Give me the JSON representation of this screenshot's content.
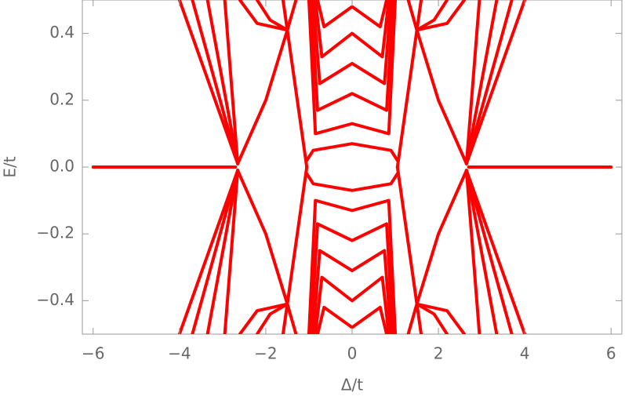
{
  "chart_data": {
    "type": "line",
    "xlabel": "Δ/t",
    "ylabel": "E/t",
    "color": "#ff0000",
    "xlim": [
      -6.25,
      6.25
    ],
    "ylim": [
      -0.5,
      0.5
    ],
    "xticks": [
      {
        "value": -6,
        "label": "−6"
      },
      {
        "value": -4,
        "label": "−4"
      },
      {
        "value": -2,
        "label": "−2"
      },
      0,
      2,
      4,
      6
    ],
    "yticks": [
      {
        "value": -0.4,
        "label": "−0.4"
      },
      {
        "value": -0.2,
        "label": "−0.2"
      },
      {
        "value": 0,
        "label": "0.0"
      },
      {
        "value": 0.2,
        "label": "0.2"
      },
      {
        "value": 0.4,
        "label": "0.4"
      }
    ],
    "series": [
      {
        "x": [
          -6,
          -2.7
        ],
        "values": [
          0,
          0
        ]
      },
      {
        "x": [
          2.7,
          6
        ],
        "values": [
          0,
          0
        ]
      },
      {
        "x": [
          2.65,
          2.95
        ],
        "values": [
          0.01,
          0.5
        ]
      },
      {
        "x": [
          2.65,
          3.35
        ],
        "values": [
          0.01,
          0.5
        ]
      },
      {
        "x": [
          2.65,
          3.7
        ],
        "values": [
          0.01,
          0.5
        ]
      },
      {
        "x": [
          2.65,
          4.0
        ],
        "values": [
          0.01,
          0.5
        ]
      },
      {
        "x": [
          1.5,
          2.0,
          2.65
        ],
        "values": [
          0.41,
          0.2,
          0.01
        ]
      },
      {
        "x": [
          1.5,
          1.9,
          2.2
        ],
        "values": [
          0.41,
          0.44,
          0.5
        ]
      },
      {
        "x": [
          1.5,
          2.2,
          2.6
        ],
        "values": [
          0.41,
          0.43,
          0.5
        ]
      },
      {
        "x": [
          1.05,
          1.6
        ],
        "values": [
          0.0,
          0.5
        ]
      },
      {
        "x": [
          1.3,
          1.5
        ],
        "values": [
          0.5,
          0.41
        ]
      },
      {
        "x": [
          -2.65,
          -2.95
        ],
        "values": [
          0.01,
          0.5
        ]
      },
      {
        "x": [
          -2.65,
          -3.35
        ],
        "values": [
          0.01,
          0.5
        ]
      },
      {
        "x": [
          -2.65,
          -3.7
        ],
        "values": [
          0.01,
          0.5
        ]
      },
      {
        "x": [
          -2.65,
          -4.0
        ],
        "values": [
          0.01,
          0.5
        ]
      },
      {
        "x": [
          -1.5,
          -2.0,
          -2.65
        ],
        "values": [
          0.41,
          0.2,
          0.01
        ]
      },
      {
        "x": [
          -1.5,
          -1.9,
          -2.2
        ],
        "values": [
          0.41,
          0.44,
          0.5
        ]
      },
      {
        "x": [
          -1.5,
          -2.2,
          -2.6
        ],
        "values": [
          0.41,
          0.43,
          0.5
        ]
      },
      {
        "x": [
          -1.05,
          -1.6
        ],
        "values": [
          0.0,
          0.5
        ]
      },
      {
        "x": [
          -1.3,
          -1.5
        ],
        "values": [
          0.5,
          0.41
        ]
      },
      {
        "x": [
          2.65,
          2.95
        ],
        "values": [
          -0.01,
          -0.5
        ]
      },
      {
        "x": [
          2.65,
          3.35
        ],
        "values": [
          -0.01,
          -0.5
        ]
      },
      {
        "x": [
          2.65,
          3.7
        ],
        "values": [
          -0.01,
          -0.5
        ]
      },
      {
        "x": [
          2.65,
          4.0
        ],
        "values": [
          -0.01,
          -0.5
        ]
      },
      {
        "x": [
          1.5,
          2.0,
          2.65
        ],
        "values": [
          -0.41,
          -0.2,
          -0.01
        ]
      },
      {
        "x": [
          1.5,
          1.9,
          2.2
        ],
        "values": [
          -0.41,
          -0.44,
          -0.5
        ]
      },
      {
        "x": [
          1.5,
          2.2,
          2.6
        ],
        "values": [
          -0.41,
          -0.43,
          -0.5
        ]
      },
      {
        "x": [
          1.05,
          1.6
        ],
        "values": [
          0.0,
          -0.5
        ]
      },
      {
        "x": [
          1.3,
          1.5
        ],
        "values": [
          -0.5,
          -0.41
        ]
      },
      {
        "x": [
          -2.65,
          -2.95
        ],
        "values": [
          -0.01,
          -0.5
        ]
      },
      {
        "x": [
          -2.65,
          -3.35
        ],
        "values": [
          -0.01,
          -0.5
        ]
      },
      {
        "x": [
          -2.65,
          -3.7
        ],
        "values": [
          -0.01,
          -0.5
        ]
      },
      {
        "x": [
          -2.65,
          -4.0
        ],
        "values": [
          -0.01,
          -0.5
        ]
      },
      {
        "x": [
          -1.5,
          -2.0,
          -2.65
        ],
        "values": [
          -0.41,
          -0.2,
          -0.01
        ]
      },
      {
        "x": [
          -1.5,
          -1.9,
          -2.2
        ],
        "values": [
          -0.41,
          -0.44,
          -0.5
        ]
      },
      {
        "x": [
          -1.5,
          -2.2,
          -2.6
        ],
        "values": [
          -0.41,
          -0.43,
          -0.5
        ]
      },
      {
        "x": [
          -1.05,
          -1.6
        ],
        "values": [
          0.0,
          -0.5
        ]
      },
      {
        "x": [
          -1.3,
          -1.5
        ],
        "values": [
          -0.5,
          -0.41
        ]
      },
      {
        "x": [
          -1.05,
          -0.9,
          0,
          0.9,
          1.05
        ],
        "values": [
          0.02,
          0.05,
          0.07,
          0.05,
          0.02
        ]
      },
      {
        "x": [
          -1.0,
          -0.85,
          0,
          0.85,
          1.0
        ],
        "values": [
          0.5,
          0.1,
          0.13,
          0.1,
          0.5
        ]
      },
      {
        "x": [
          -0.95,
          -0.8,
          0,
          0.8,
          0.95
        ],
        "values": [
          0.5,
          0.17,
          0.22,
          0.17,
          0.5
        ]
      },
      {
        "x": [
          -0.9,
          -0.75,
          0,
          0.75,
          0.9
        ],
        "values": [
          0.5,
          0.25,
          0.31,
          0.25,
          0.5
        ]
      },
      {
        "x": [
          -0.85,
          -0.7,
          0,
          0.7,
          0.85
        ],
        "values": [
          0.5,
          0.33,
          0.4,
          0.33,
          0.5
        ]
      },
      {
        "x": [
          -0.8,
          -0.65,
          0,
          0.65,
          0.8
        ],
        "values": [
          0.5,
          0.42,
          0.48,
          0.42,
          0.5
        ]
      },
      {
        "x": [
          -1.05,
          -0.9,
          0,
          0.9,
          1.05
        ],
        "values": [
          -0.02,
          -0.05,
          -0.07,
          -0.05,
          -0.02
        ]
      },
      {
        "x": [
          -1.0,
          -0.85,
          0,
          0.85,
          1.0
        ],
        "values": [
          -0.5,
          -0.1,
          -0.13,
          -0.1,
          -0.5
        ]
      },
      {
        "x": [
          -0.95,
          -0.8,
          0,
          0.8,
          0.95
        ],
        "values": [
          -0.5,
          -0.17,
          -0.22,
          -0.17,
          -0.5
        ]
      },
      {
        "x": [
          -0.9,
          -0.75,
          0,
          0.75,
          0.9
        ],
        "values": [
          -0.5,
          -0.25,
          -0.31,
          -0.25,
          -0.5
        ]
      },
      {
        "x": [
          -0.85,
          -0.7,
          0,
          0.7,
          0.85
        ],
        "values": [
          -0.5,
          -0.33,
          -0.4,
          -0.33,
          -0.5
        ]
      },
      {
        "x": [
          -0.8,
          -0.65,
          0,
          0.65,
          0.8
        ],
        "values": [
          -0.5,
          -0.42,
          -0.48,
          -0.42,
          -0.5
        ]
      }
    ]
  }
}
